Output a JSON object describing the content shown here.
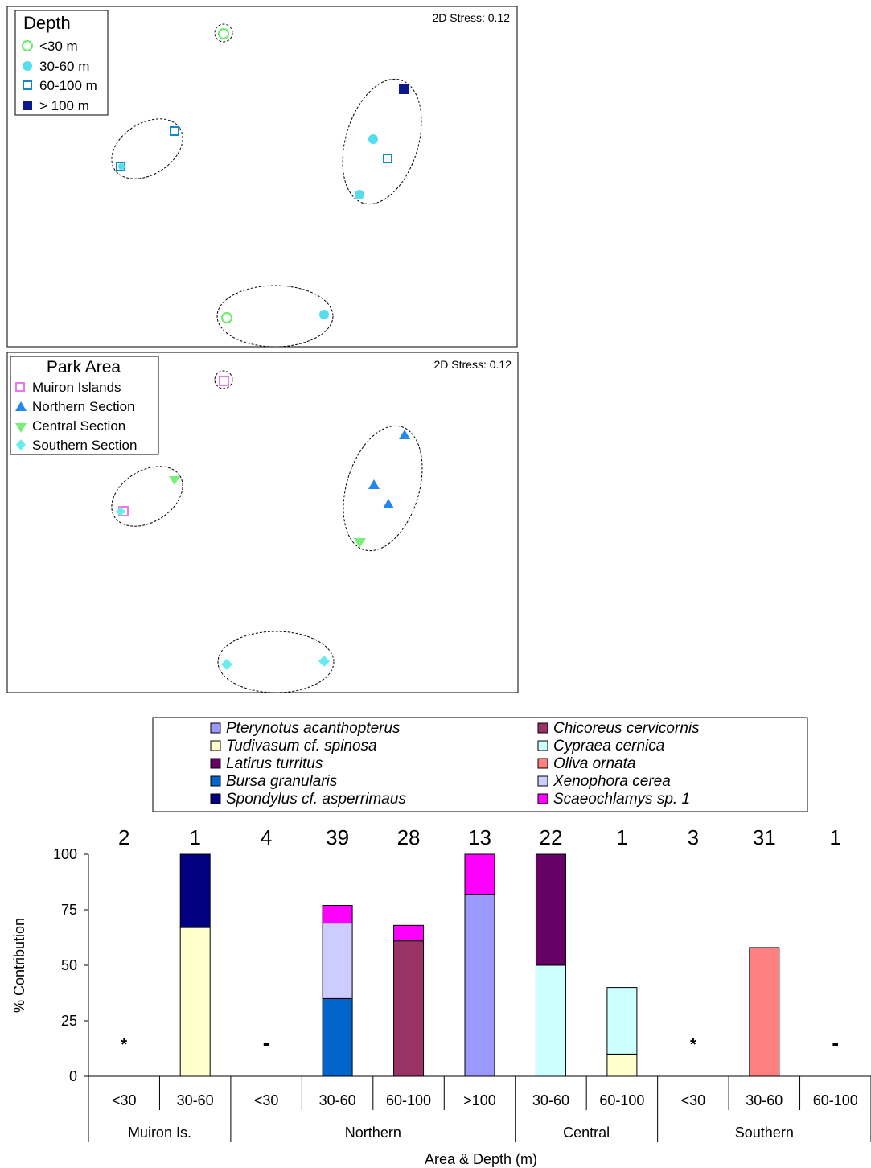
{
  "mds_panels": [
    {
      "legend_title": "Depth",
      "stress": "2D Stress: 0.12",
      "legend": [
        {
          "label": "<30 m",
          "marker": "open-circle",
          "color": "#66ee66"
        },
        {
          "label": "30-60 m",
          "marker": "filled-circle",
          "color": "#55ddee"
        },
        {
          "label": "60-100 m",
          "marker": "open-square",
          "color": "#1188cc"
        },
        {
          "label": "> 100 m",
          "marker": "filled-square",
          "color": "#0a1a8c"
        }
      ]
    },
    {
      "legend_title": "Park Area",
      "stress": "2D Stress: 0.12",
      "legend": [
        {
          "label": "Muiron Islands",
          "marker": "open-square",
          "color": "#ee77ee"
        },
        {
          "label": "Northern Section",
          "marker": "triangle-up",
          "color": "#2288ee"
        },
        {
          "label": "Central Section",
          "marker": "triangle-down",
          "color": "#77ee77"
        },
        {
          "label": "Southern Section",
          "marker": "diamond",
          "color": "#66eeee"
        }
      ]
    }
  ],
  "species_legend": [
    {
      "name": "Pterynotus acanthopterus",
      "color": "#9999ff"
    },
    {
      "name": "Tudivasum cf. spinosa",
      "color": "#ffffcc"
    },
    {
      "name": "Latirus turritus",
      "color": "#660066"
    },
    {
      "name": "Bursa granularis",
      "color": "#0066cc"
    },
    {
      "name": "Spondylus cf. asperrimaus",
      "color": "#000080"
    },
    {
      "name": "Chicoreus cervicornis",
      "color": "#993366"
    },
    {
      "name": "Cypraea cernica",
      "color": "#ccffff"
    },
    {
      "name": "Oliva ornata",
      "color": "#ff8080"
    },
    {
      "name": "Xenophora cerea",
      "color": "#ccccff"
    },
    {
      "name": "Scaeochlamys sp. 1",
      "color": "#ff00ff"
    }
  ],
  "chart_data": {
    "type": "bar",
    "stacked": true,
    "ylabel": "% Contribution",
    "xlabel": "Area & Depth (m)",
    "ylim": [
      0,
      100
    ],
    "yticks": [
      0,
      25,
      50,
      75,
      100
    ],
    "groups": [
      {
        "name": "Muiron Is.",
        "categories": [
          "<30",
          "30-60"
        ]
      },
      {
        "name": "Northern",
        "categories": [
          "<30",
          "30-60",
          "60-100",
          ">100"
        ]
      },
      {
        "name": "Central",
        "categories": [
          "30-60",
          "60-100"
        ]
      },
      {
        "name": "Southern",
        "categories": [
          "<30",
          "30-60",
          "60-100"
        ]
      }
    ],
    "sample_counts": [
      "2",
      "1",
      "4",
      "39",
      "28",
      "13",
      "22",
      "1",
      "3",
      "31",
      "1"
    ],
    "markers": [
      "*",
      "",
      "-",
      "",
      "",
      "",
      "",
      "",
      "*",
      "",
      "-"
    ],
    "stacks": [
      [],
      [
        {
          "species": "Tudivasum cf. spinosa",
          "value": 67
        },
        {
          "species": "Spondylus cf. asperrimaus",
          "value": 33
        }
      ],
      [],
      [
        {
          "species": "Bursa granularis",
          "value": 35
        },
        {
          "species": "Xenophora cerea",
          "value": 34
        },
        {
          "species": "Scaeochlamys sp. 1",
          "value": 8
        }
      ],
      [
        {
          "species": "Chicoreus cervicornis",
          "value": 61
        },
        {
          "species": "Scaeochlamys sp. 1",
          "value": 7
        }
      ],
      [
        {
          "species": "Pterynotus acanthopterus",
          "value": 82
        },
        {
          "species": "Scaeochlamys sp. 1",
          "value": 18
        }
      ],
      [
        {
          "species": "Cypraea cernica",
          "value": 50
        },
        {
          "species": "Latirus turritus",
          "value": 50
        }
      ],
      [
        {
          "species": "Tudivasum cf. spinosa",
          "value": 10
        },
        {
          "species": "Cypraea cernica",
          "value": 30
        }
      ],
      [],
      [
        {
          "species": "Oliva ornata",
          "value": 58
        }
      ],
      []
    ]
  }
}
